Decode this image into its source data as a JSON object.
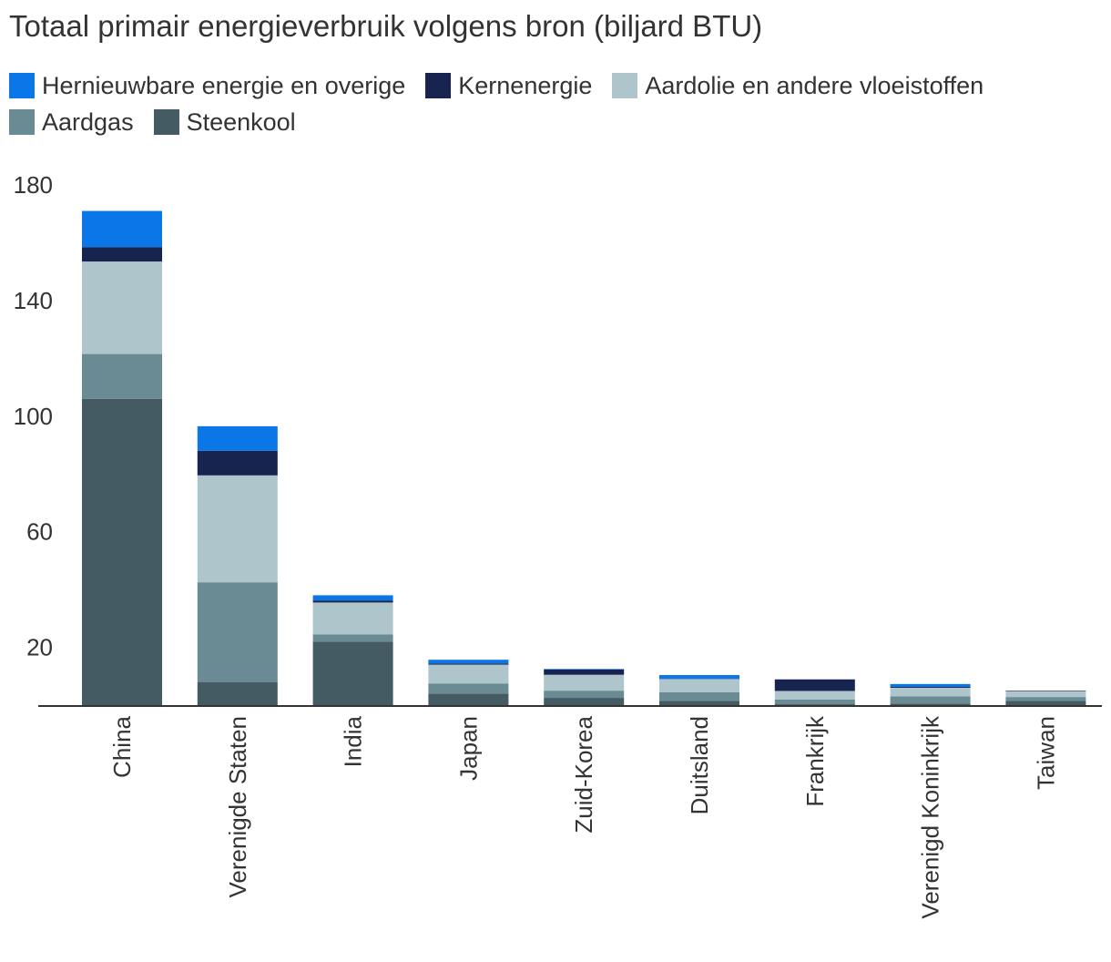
{
  "chart_data": {
    "type": "bar",
    "stacked": true,
    "title": "Totaal primair energieverbruik volgens bron (biljard BTU)",
    "xlabel": "",
    "ylabel": "",
    "ylim": [
      0,
      180
    ],
    "y_ticks": [
      20,
      60,
      100,
      140,
      180
    ],
    "grid": false,
    "legend_position": "top-left",
    "categories": [
      "China",
      "Verenigde Staten",
      "India",
      "Japan",
      "Zuid-Korea",
      "Duitsland",
      "Frankrijk",
      "Verenigd Koninkrijk",
      "Taiwan"
    ],
    "series": [
      {
        "name": "Steenkool",
        "color": "#455b64",
        "values": [
          106,
          8,
          22,
          4,
          2.5,
          1.5,
          0.3,
          0.5,
          1.5
        ]
      },
      {
        "name": "Aardgas",
        "color": "#6a8a94",
        "values": [
          15.5,
          34.5,
          2.5,
          3.5,
          2.5,
          3,
          1.6,
          2.5,
          1.3
        ]
      },
      {
        "name": "Aardolie en andere vloeistoffen",
        "color": "#afc5cc",
        "values": [
          32,
          37,
          11,
          6.5,
          5.5,
          4.5,
          3,
          3,
          2
        ]
      },
      {
        "name": "Kernenergie",
        "color": "#172450",
        "values": [
          5,
          8.5,
          0.7,
          0.4,
          1.8,
          0.1,
          4,
          0.3,
          0.2
        ]
      },
      {
        "name": "Hernieuwbare energie en overige",
        "color": "#0a76e8",
        "values": [
          12.5,
          8.5,
          1.8,
          1.3,
          0.2,
          1.3,
          0,
          1,
          0
        ]
      }
    ]
  }
}
